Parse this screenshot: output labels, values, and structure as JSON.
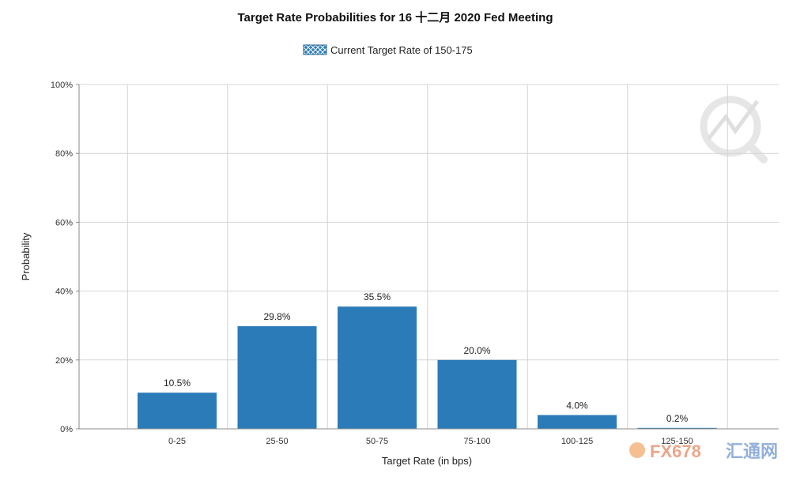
{
  "chart_data": {
    "type": "bar",
    "title": "Target Rate Probabilities for 16 十二月 2020  Fed Meeting",
    "legend": {
      "label": "Current Target Rate of 150-175",
      "placement": "top-center"
    },
    "xlabel": "Target Rate (in bps)",
    "ylabel": "Probability",
    "categories": [
      "0-25",
      "25-50",
      "50-75",
      "75-100",
      "100-125",
      "125-150"
    ],
    "values": [
      10.5,
      29.8,
      35.5,
      20.0,
      4.0,
      0.2
    ],
    "value_labels": [
      "10.5%",
      "29.8%",
      "35.5%",
      "20.0%",
      "4.0%",
      "0.2%"
    ],
    "ylim": [
      0,
      100
    ],
    "yticks": [
      0,
      20,
      40,
      60,
      80,
      100
    ],
    "ytick_labels": [
      "0%",
      "20%",
      "40%",
      "60%",
      "80%",
      "100%"
    ],
    "grid": true,
    "bar_color": "#2b7bb9"
  },
  "watermark": {
    "cn": "汇通网",
    "text": "FX678"
  }
}
